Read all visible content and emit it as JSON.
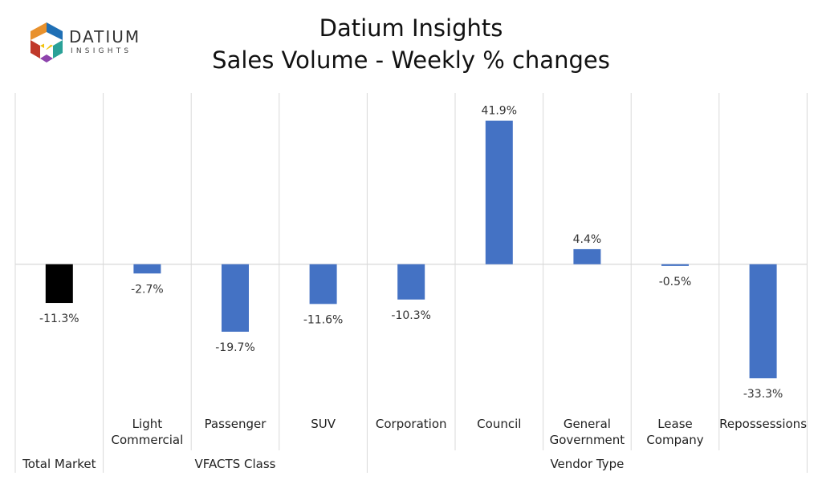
{
  "logo": {
    "word": "DATIUM",
    "sub": "INSIGHTS",
    "colors": [
      "#1f6fb5",
      "#e8912d",
      "#2aa198",
      "#c0392b",
      "#8e44ad",
      "#f1c40f"
    ]
  },
  "title_line1": "Datium Insights",
  "title_line2": "Sales Volume - Weekly % changes",
  "colors": {
    "bar": "#4472c4",
    "highlight": "#000000",
    "grid": "#d9d9d9"
  },
  "chart_data": {
    "type": "bar",
    "title": "Datium Insights\nSales Volume - Weekly % changes",
    "categories": [
      [
        "Total Market"
      ],
      [
        "Light",
        "Commercial"
      ],
      [
        "Passenger"
      ],
      [
        "SUV"
      ],
      [
        "Corporation"
      ],
      [
        "Council"
      ],
      [
        "General",
        "Government"
      ],
      [
        "Lease",
        "Company"
      ],
      [
        "Repossessions"
      ]
    ],
    "values": [
      -11.3,
      -2.7,
      -19.7,
      -11.6,
      -10.3,
      41.9,
      4.4,
      -0.5,
      -33.3
    ],
    "labels": [
      "-11.3%",
      "-2.7%",
      "-19.7%",
      "-11.6%",
      "-10.3%",
      "41.9%",
      "4.4%",
      "-0.5%",
      "-33.3%"
    ],
    "bar_colors": [
      "#000000",
      "#4472c4",
      "#4472c4",
      "#4472c4",
      "#4472c4",
      "#4472c4",
      "#4472c4",
      "#4472c4",
      "#4472c4"
    ],
    "groups": [
      {
        "name": "Total Market",
        "start": 0,
        "end": 0
      },
      {
        "name": "VFACTS Class",
        "start": 1,
        "end": 3
      },
      {
        "name": "Vendor Type",
        "start": 4,
        "end": 8
      }
    ],
    "ylim": [
      -41.7,
      50.0
    ],
    "xlabel": "",
    "ylabel": "",
    "grid": true
  }
}
